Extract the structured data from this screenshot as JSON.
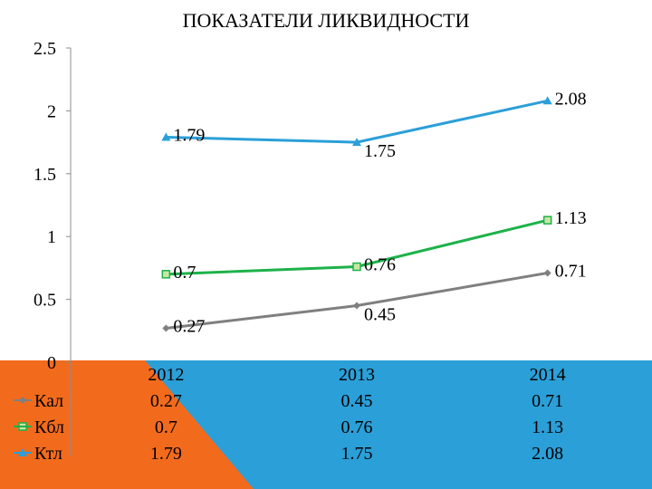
{
  "chart_data": {
    "type": "line",
    "title": "ПОКАЗАТЕЛИ ЛИКВИДНОСТИ",
    "categories": [
      "2012",
      "2013",
      "2014"
    ],
    "ylim": [
      0,
      2.5
    ],
    "yticks": [
      "0",
      "0.5",
      "1",
      "1.5",
      "2",
      "2.5"
    ],
    "grid": false,
    "legend": "data-table",
    "series": [
      {
        "name": "Кал",
        "values": [
          0.27,
          0.45,
          0.71
        ],
        "labels": [
          "0.27",
          "0.45",
          "0.71"
        ],
        "color": "#7f7f7f",
        "marker": "diamond"
      },
      {
        "name": "Кбл",
        "values": [
          0.7,
          0.76,
          1.13
        ],
        "labels": [
          "0.7",
          "0.76",
          "1.13"
        ],
        "color": "#1db24a",
        "marker": "square"
      },
      {
        "name": "Ктл",
        "values": [
          1.79,
          1.75,
          2.08
        ],
        "labels": [
          "1.79",
          "1.75",
          "2.08"
        ],
        "color": "#2b9fd8",
        "marker": "triangle"
      }
    ]
  },
  "colors": {
    "background_band": "#2b9fd8",
    "accent_wedge": "#f26b1d",
    "axis": "#8c8c8c"
  }
}
